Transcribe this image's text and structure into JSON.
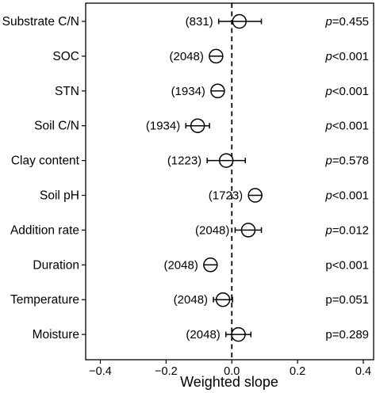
{
  "chart_data": {
    "type": "forest",
    "xlabel": "Weighted slope",
    "xlim": [
      -0.43,
      0.43
    ],
    "xticks": [
      -0.4,
      -0.2,
      0.0,
      0.2,
      0.4
    ],
    "xtick_labels": [
      "−0.4",
      "−0.2",
      "0.0",
      "0.2",
      "0.4"
    ],
    "reference_line": 0.0,
    "grid": false,
    "rows": [
      {
        "label": "Substrate C/N",
        "n": "(831)",
        "estimate": 0.023,
        "ci": [
          -0.04,
          0.09
        ],
        "p_italic": "p",
        "p_rest": "=0.455"
      },
      {
        "label": "SOC",
        "n": "(2048)",
        "estimate": -0.048,
        "ci": [
          -0.06,
          -0.036
        ],
        "p_italic": "p",
        "p_rest": "<0.001"
      },
      {
        "label": "STN",
        "n": "(1934)",
        "estimate": -0.043,
        "ci": [
          -0.056,
          -0.03
        ],
        "p_italic": "p",
        "p_rest": "<0.001"
      },
      {
        "label": "Soil C/N",
        "n": "(1934)",
        "estimate": -0.104,
        "ci": [
          -0.14,
          -0.068
        ],
        "p_italic": "p",
        "p_rest": "<0.001"
      },
      {
        "label": "Clay content",
        "n": "(1223)",
        "estimate": -0.017,
        "ci": [
          -0.075,
          0.041
        ],
        "p_italic": "p",
        "p_rest": "=0.578"
      },
      {
        "label": "Soil pH",
        "n": "(1723)",
        "estimate": 0.071,
        "ci": [
          0.061,
          0.081
        ],
        "p_italic": "p",
        "p_rest": "<0.001"
      },
      {
        "label": "Addition rate",
        "n": "(2048)",
        "estimate": 0.05,
        "ci": [
          0.01,
          0.09
        ],
        "p_italic": "p",
        "p_rest": "=0.012"
      },
      {
        "label": "Duration",
        "n": "(2048)",
        "estimate": -0.065,
        "ci": [
          -0.08,
          -0.05
        ],
        "p_italic": "",
        "p_rest": "p<0.001"
      },
      {
        "label": "Temperature",
        "n": "(2048)",
        "estimate": -0.027,
        "ci": [
          -0.056,
          0.002
        ],
        "p_italic": "",
        "p_rest": "p=0.051"
      },
      {
        "label": "Moisture",
        "n": "(2048)",
        "estimate": 0.02,
        "ci": [
          -0.018,
          0.058
        ],
        "p_italic": "",
        "p_rest": "p=0.289"
      }
    ]
  }
}
